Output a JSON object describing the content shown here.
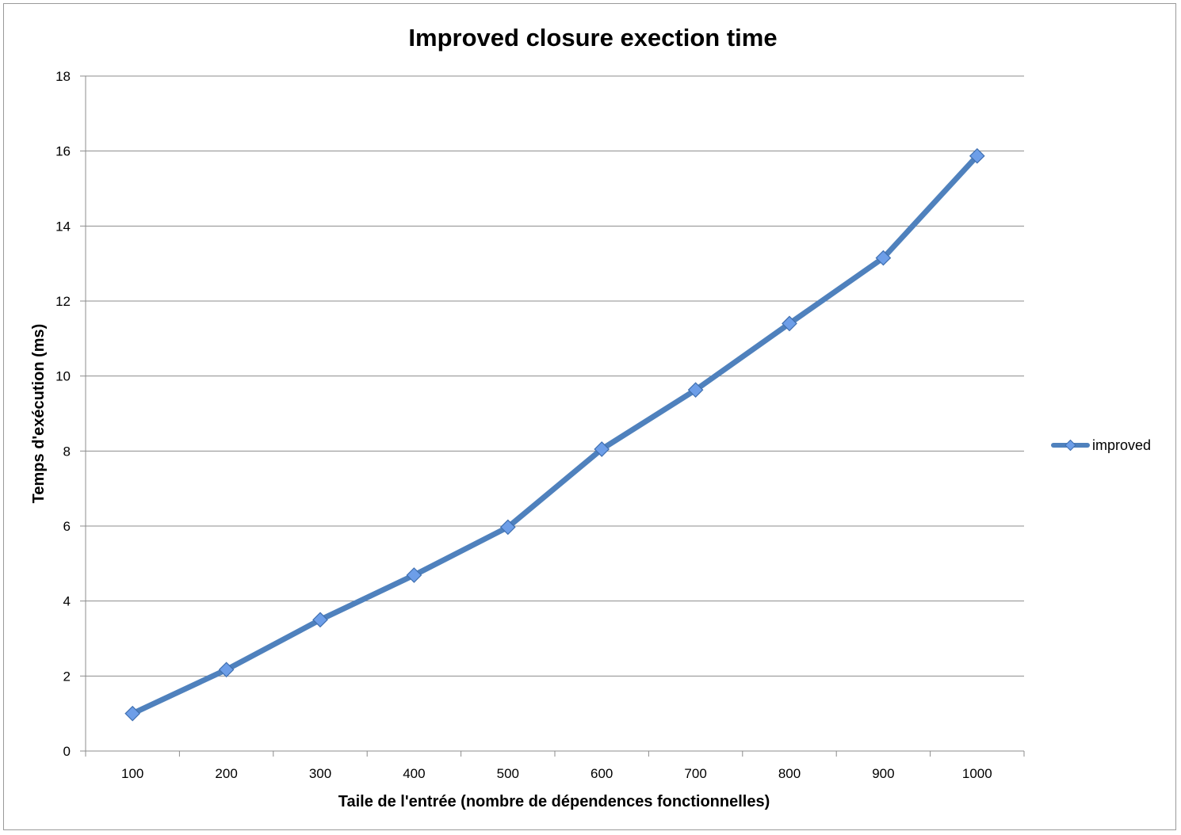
{
  "chart_data": {
    "type": "line",
    "title": "Improved closure exection time",
    "xlabel": "Taile de l'entrée (nombre de dépendences fonctionnelles)",
    "ylabel": "Temps d'exécution (ms)",
    "categories": [
      "100",
      "200",
      "300",
      "400",
      "500",
      "600",
      "700",
      "800",
      "900",
      "1000"
    ],
    "ylim": [
      0,
      18
    ],
    "yticks": [
      "0",
      "2",
      "4",
      "6",
      "8",
      "10",
      "12",
      "14",
      "16",
      "18"
    ],
    "grid": true,
    "legend_position": "right",
    "series": [
      {
        "name": "improved",
        "color": "#4f81bd",
        "marker_color": "#6d9ee8",
        "values": [
          1.0,
          2.17,
          3.5,
          4.69,
          5.97,
          8.05,
          9.63,
          11.4,
          13.15,
          15.87
        ]
      }
    ]
  }
}
